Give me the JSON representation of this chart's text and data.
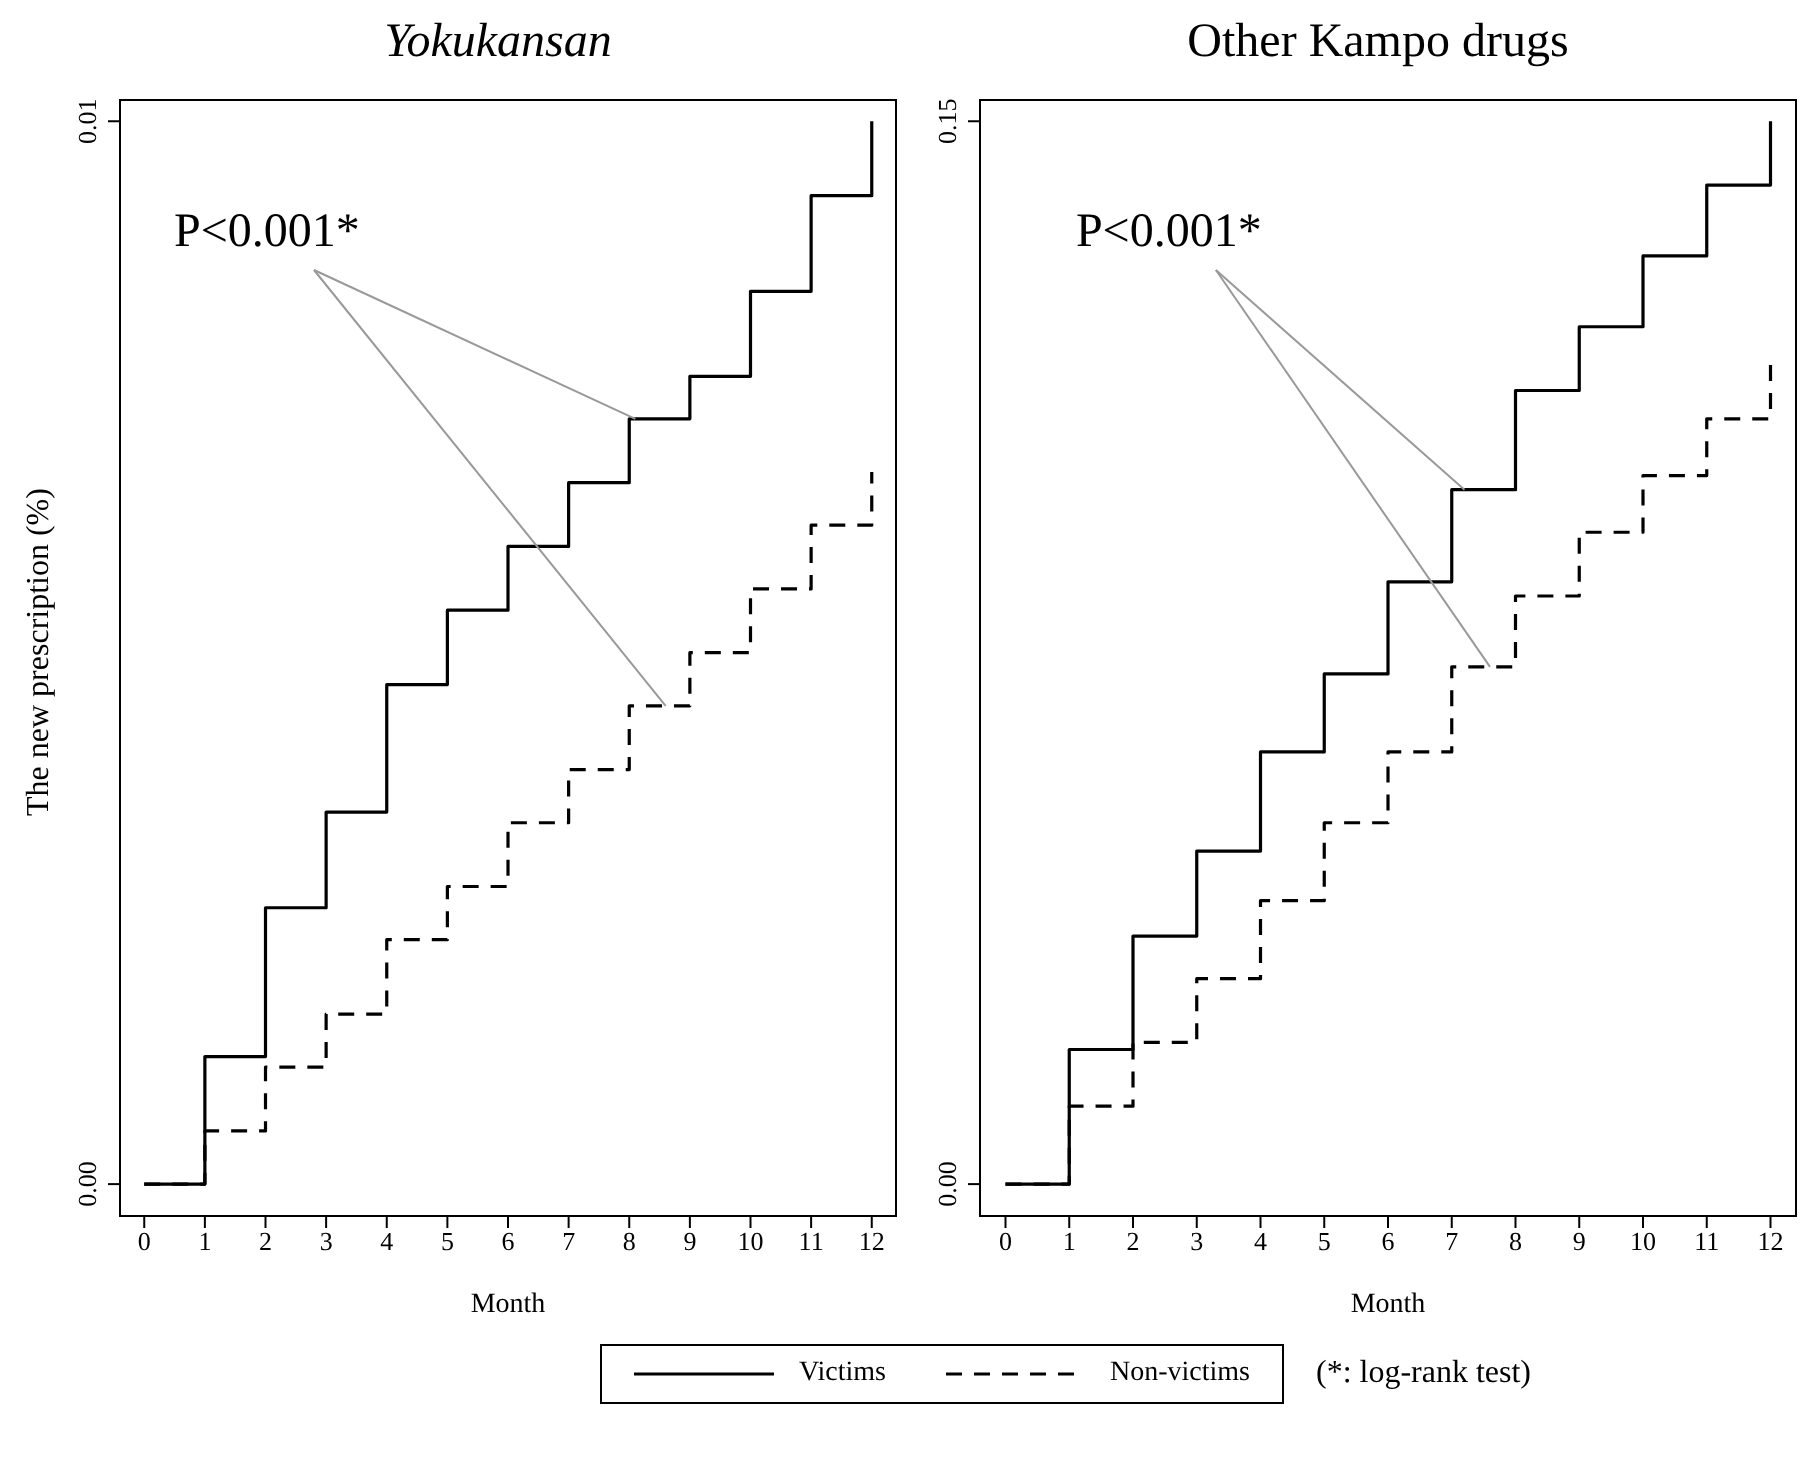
{
  "chart_data": [
    {
      "type": "step",
      "title": "Yokukansan",
      "ylabel": "The new prescription (%)",
      "xlabel": "Month",
      "x": [
        0,
        1,
        2,
        3,
        4,
        5,
        6,
        7,
        8,
        9,
        10,
        11,
        12
      ],
      "xlim": [
        -0.4,
        12.4
      ],
      "xticks": [
        0,
        1,
        2,
        3,
        4,
        5,
        6,
        7,
        8,
        9,
        10,
        11,
        12
      ],
      "ylim": [
        -0.0003,
        0.0102
      ],
      "yticks": [
        {
          "value": 0,
          "label": "0.00"
        },
        {
          "value": 0.01,
          "label": "0.01"
        }
      ],
      "legend": "bottom",
      "annotations": [
        "P<0.001*"
      ],
      "series": [
        {
          "name": "Victims",
          "color": "#000000",
          "line_style": "solid",
          "values": [
            0,
            0.0012,
            0.0026,
            0.0035,
            0.0047,
            0.0054,
            0.006,
            0.0066,
            0.0072,
            0.0076,
            0.0084,
            0.0093,
            0.01
          ]
        },
        {
          "name": "Non-victims",
          "color": "#000000",
          "line_style": "dashed",
          "values": [
            0,
            0.0005,
            0.0011,
            0.0016,
            0.0023,
            0.0028,
            0.0034,
            0.0039,
            0.0045,
            0.005,
            0.0056,
            0.0062,
            0.0067
          ]
        }
      ]
    },
    {
      "type": "step",
      "title": "Other Kampo drugs",
      "xlabel": "Month",
      "x": [
        0,
        1,
        2,
        3,
        4,
        5,
        6,
        7,
        8,
        9,
        10,
        11,
        12
      ],
      "xlim": [
        -0.4,
        12.4
      ],
      "xticks": [
        0,
        1,
        2,
        3,
        4,
        5,
        6,
        7,
        8,
        9,
        10,
        11,
        12
      ],
      "ylim": [
        -0.0045,
        0.153
      ],
      "yticks": [
        {
          "value": 0,
          "label": "0.00"
        },
        {
          "value": 0.15,
          "label": "0.15"
        }
      ],
      "annotations": [
        "P<0.001*",
        "(*: log-rank test)"
      ],
      "series": [
        {
          "color": "#000000",
          "line_style": "solid",
          "values": [
            0,
            0.019,
            0.035,
            0.047,
            0.061,
            0.072,
            0.085,
            0.098,
            0.112,
            0.121,
            0.131,
            0.141,
            0.15
          ]
        },
        {
          "color": "#000000",
          "line_style": "dashed",
          "values": [
            0,
            0.011,
            0.02,
            0.029,
            0.04,
            0.051,
            0.061,
            0.073,
            0.083,
            0.092,
            0.1,
            0.108,
            0.116
          ]
        }
      ]
    }
  ]
}
